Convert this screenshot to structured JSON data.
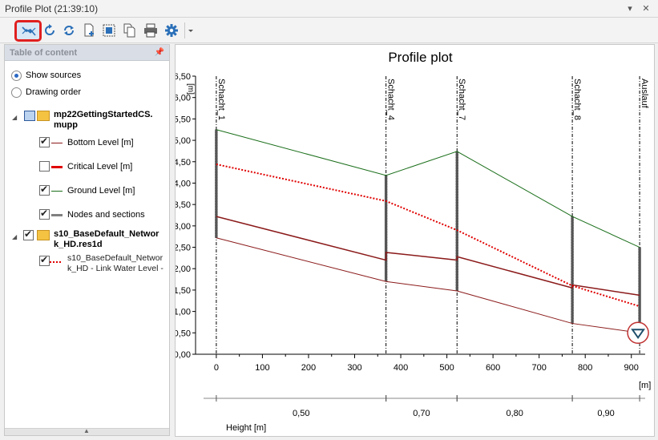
{
  "window": {
    "title": "Profile Plot (21:39:10)"
  },
  "toolbar": {
    "tools": [
      {
        "name": "profile-plot-tool-icon",
        "active": true
      },
      {
        "name": "refresh-icon"
      },
      {
        "name": "sync-icon"
      },
      {
        "name": "add-page-icon"
      },
      {
        "name": "fit-extent-icon"
      },
      {
        "name": "copy-icon"
      },
      {
        "name": "print-icon"
      },
      {
        "name": "settings-gear-icon"
      },
      {
        "name": "dropdown-arrow-icon"
      }
    ]
  },
  "toc": {
    "title": "Table of content",
    "options": [
      {
        "label": "Show sources",
        "selected": true
      },
      {
        "label": "Drawing order",
        "selected": false
      }
    ],
    "groups": [
      {
        "title_line1": "mp22GettingStartedCS.",
        "title_line2": "mupp",
        "layers": [
          {
            "label": "Bottom Level [m]",
            "checked": true,
            "color": "#8b1a1a"
          },
          {
            "label": "Critical Level [m]",
            "checked": false,
            "color": "#e00000"
          },
          {
            "label": "Ground Level [m]",
            "checked": true,
            "color": "#1a6e1a"
          },
          {
            "label": "Nodes and sections",
            "checked": true,
            "color": "#808080"
          }
        ]
      },
      {
        "title_line1": "s10_BaseDefault_Networ",
        "title_line2": "k_HD.res1d",
        "layers": [
          {
            "label_line1": "s10_BaseDefault_Networ",
            "label_line2": "k_HD - Link Water Level -",
            "checked": true,
            "color": "#e00000"
          }
        ]
      }
    ]
  },
  "chart_data": {
    "type": "line",
    "title": "Profile plot",
    "ylabel": "[m]",
    "xlabel": "[m]",
    "ylim": [
      0,
      6.5
    ],
    "xlim": [
      -45,
      930
    ],
    "yticks": [
      "0,00",
      "0,50",
      "1,00",
      "1,50",
      "2,00",
      "2,50",
      "3,00",
      "3,50",
      "4,00",
      "4,50",
      "5,00",
      "5,50",
      "6,00",
      "6,50"
    ],
    "xticks": [
      "0",
      "100",
      "200",
      "300",
      "400",
      "500",
      "600",
      "700",
      "800",
      "900"
    ],
    "nodes": [
      {
        "name": "Schacht_1",
        "x": 0
      },
      {
        "name": "Schacht_4",
        "x": 368
      },
      {
        "name": "Schacht_7",
        "x": 522
      },
      {
        "name": "Schacht_8",
        "x": 772
      },
      {
        "name": "Auslauf",
        "x": 918
      }
    ],
    "series": [
      {
        "name": "Ground Level [m]",
        "color": "#1a6e1a",
        "style": "solid",
        "width": 1,
        "points": [
          [
            0,
            5.25
          ],
          [
            368,
            4.18
          ],
          [
            522,
            4.74
          ],
          [
            772,
            3.22
          ],
          [
            918,
            2.5
          ]
        ]
      },
      {
        "name": "Critical Level [m]",
        "color": "#8b1a1a",
        "style": "solid",
        "width": 1.5,
        "points": [
          [
            0,
            3.22
          ],
          [
            368,
            2.2
          ],
          [
            368,
            2.38
          ],
          [
            522,
            2.2
          ],
          [
            522,
            2.28
          ],
          [
            772,
            1.55
          ],
          [
            772,
            1.62
          ],
          [
            918,
            1.38
          ]
        ]
      },
      {
        "name": "Bottom Level [m]",
        "color": "#8b1a1a",
        "style": "solid",
        "width": 1,
        "points": [
          [
            0,
            2.72
          ],
          [
            368,
            1.7
          ],
          [
            522,
            1.48
          ],
          [
            772,
            0.72
          ],
          [
            918,
            0.5
          ]
        ]
      },
      {
        "name": "s10_BaseDefault_Network_HD - Link Water Level -",
        "color": "#e00000",
        "style": "dotted",
        "width": 2,
        "points": [
          [
            0,
            4.44
          ],
          [
            368,
            3.58
          ],
          [
            522,
            2.9
          ],
          [
            772,
            1.6
          ],
          [
            918,
            1.12
          ]
        ]
      }
    ],
    "node_bars": [
      {
        "x": 0,
        "bottom": 2.72,
        "top": 5.25
      },
      {
        "x": 368,
        "bottom": 1.7,
        "top": 4.18
      },
      {
        "x": 522,
        "bottom": 1.48,
        "top": 4.74
      },
      {
        "x": 772,
        "bottom": 0.72,
        "top": 3.22
      },
      {
        "x": 918,
        "bottom": 0.5,
        "top": 2.5
      }
    ],
    "outlet_marker": {
      "x": 918,
      "y": 0.5
    },
    "height_row": {
      "label": "Height [m]",
      "segments": [
        {
          "from": 0,
          "to": 368,
          "label": "0,50"
        },
        {
          "from": 368,
          "to": 522,
          "label": "0,70"
        },
        {
          "from": 522,
          "to": 772,
          "label": "0,80"
        },
        {
          "from": 772,
          "to": 918,
          "label": "0,90"
        }
      ]
    }
  }
}
